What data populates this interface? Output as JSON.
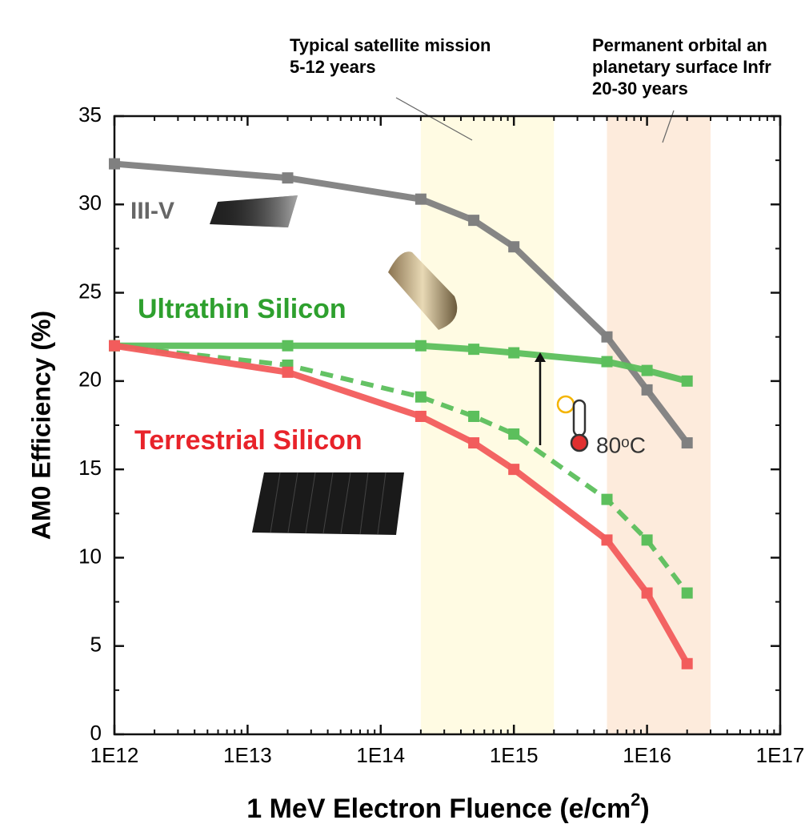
{
  "chart_data": {
    "type": "line",
    "x_label": "1 MeV Electron Fluence (e/cm",
    "x_label_sup": "2",
    "x_label_end": ")",
    "y_label": "AM0 Efficiency (%)",
    "x": [
      1000000000000.0,
      20000000000000.0,
      200000000000000.0,
      500000000000000.0,
      1000000000000000.0,
      5000000000000000.0,
      1e+16,
      2e+16
    ],
    "series": [
      {
        "name": "III-V",
        "color": "#808080",
        "values": [
          32.3,
          31.5,
          30.3,
          29.1,
          27.6,
          22.5,
          19.5,
          16.5
        ]
      },
      {
        "name": "Ultrathin Silicon",
        "color": "#5cbf5c",
        "values": [
          22.0,
          22.0,
          22.0,
          21.8,
          21.6,
          21.1,
          20.6,
          20.0
        ]
      },
      {
        "color": "#5cbf5c",
        "dashed": true,
        "values": [
          22.0,
          20.9,
          19.1,
          18.0,
          17.0,
          13.3,
          11.0,
          8.0
        ]
      },
      {
        "name": "Terrestrial Silicon",
        "color": "#f25c5c",
        "values": [
          22.0,
          20.5,
          18.0,
          16.5,
          15.0,
          11.0,
          8.0,
          4.0
        ]
      }
    ],
    "xlog": true,
    "xlim": [
      1000000000000.0,
      1e+17
    ],
    "xticks": [
      {
        "value": 1000000000000.0,
        "label": "1E12"
      },
      {
        "value": 10000000000000.0,
        "label": "1E13"
      },
      {
        "value": 100000000000000.0,
        "label": "1E14"
      },
      {
        "value": 1000000000000000.0,
        "label": "1E15"
      },
      {
        "value": 1e+16,
        "label": "1E16"
      },
      {
        "value": 1e+17,
        "label": "1E17"
      }
    ],
    "ylim": [
      0,
      35
    ],
    "yticks": [
      0,
      5,
      10,
      15,
      20,
      25,
      30,
      35
    ],
    "grid": false,
    "bands": [
      {
        "x": [
          200000000000000.0,
          2000000000000000.0
        ],
        "color": "#fffbe3",
        "lines": [
          "Typical satellite mission",
          "5-12 years"
        ]
      },
      {
        "x": [
          5000000000000000.0,
          3e+16
        ],
        "color": "#fdebdc",
        "lines": [
          "Permanent orbital an",
          "planetary surface Infr",
          "20-30 years"
        ]
      }
    ],
    "annotations": [
      "80ᵒC"
    ]
  }
}
